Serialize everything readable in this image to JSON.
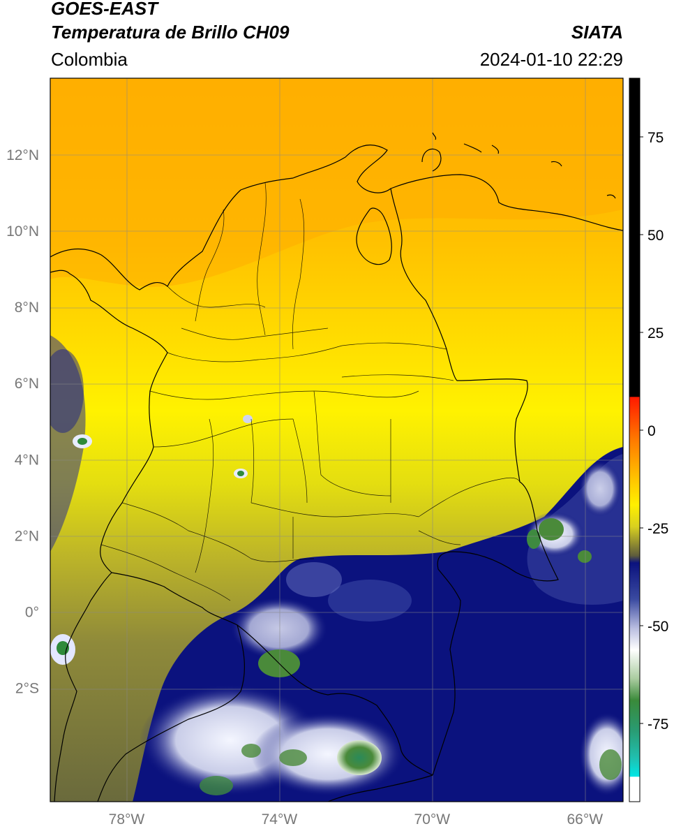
{
  "header": {
    "title_line1": "GOES-EAST",
    "title_line2": "Temperatura de Brillo CH09",
    "region": "Colombia",
    "organization": "SIATA",
    "datetime": "2024-01-10 22:29"
  },
  "map": {
    "lon_range": [
      -80,
      -65
    ],
    "lat_range": [
      -5,
      14
    ],
    "lat_ticks": [
      {
        "value": 12,
        "label": "12°N"
      },
      {
        "value": 10,
        "label": "10°N"
      },
      {
        "value": 8,
        "label": "8°N"
      },
      {
        "value": 6,
        "label": "6°N"
      },
      {
        "value": 4,
        "label": "4°N"
      },
      {
        "value": 2,
        "label": "2°N"
      },
      {
        "value": 0,
        "label": "0°"
      },
      {
        "value": -2,
        "label": "2°S"
      }
    ],
    "lon_ticks": [
      {
        "value": -78,
        "label": "78°W"
      },
      {
        "value": -74,
        "label": "74°W"
      },
      {
        "value": -70,
        "label": "70°W"
      },
      {
        "value": -66,
        "label": "66°W"
      }
    ],
    "gridlines": true
  },
  "colorbar": {
    "range": [
      -95,
      90
    ],
    "ticks": [
      {
        "value": 75,
        "label": "75"
      },
      {
        "value": 50,
        "label": "50"
      },
      {
        "value": 25,
        "label": "25"
      },
      {
        "value": 0,
        "label": "0"
      },
      {
        "value": -25,
        "label": "-25"
      },
      {
        "value": -50,
        "label": "-50"
      },
      {
        "value": -75,
        "label": "-75"
      }
    ],
    "colors": {
      "black": "#000000",
      "red": "#ff1a00",
      "orange": "#ff9a00",
      "yellow": "#fff000",
      "olive": "#6e6b38",
      "navy": "#0b127e",
      "white": "#ffffff",
      "green": "#2e7a2e",
      "teal": "#20b89a",
      "cyan": "#00e6e6"
    }
  }
}
